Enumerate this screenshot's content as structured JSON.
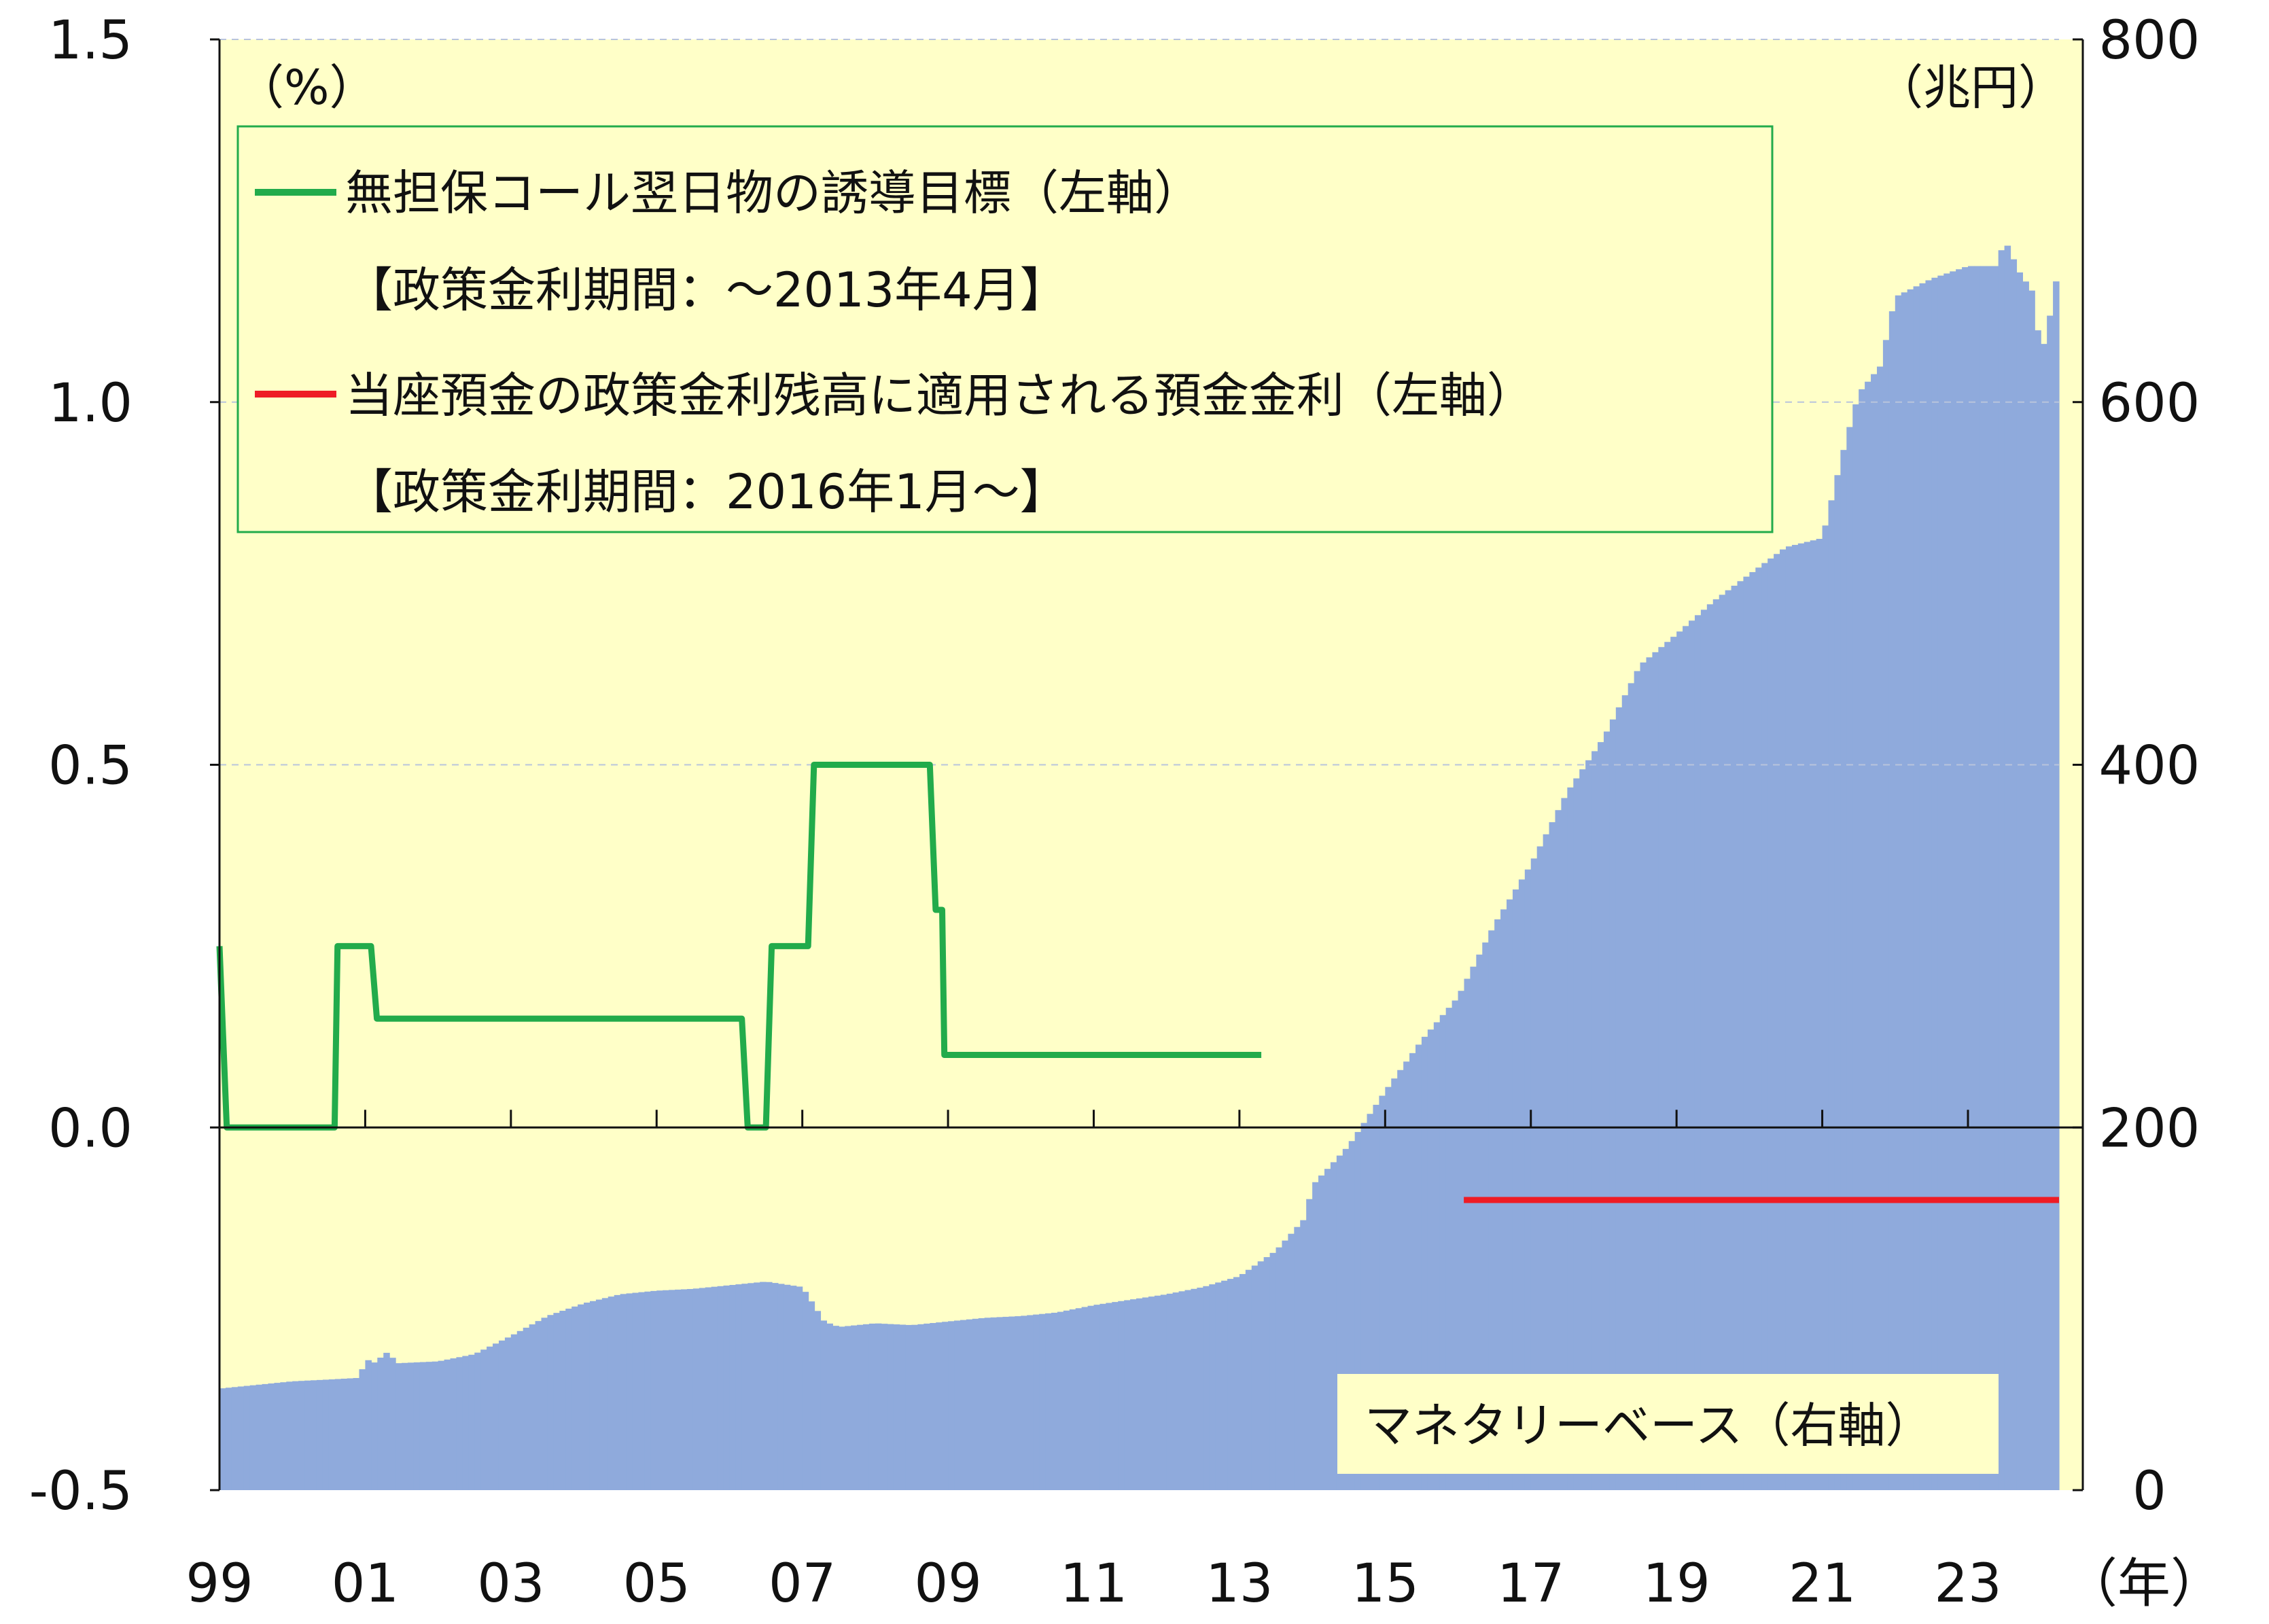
{
  "chart_data": {
    "type": "line",
    "units": {
      "left": "（%）",
      "right": "（兆円）",
      "x": "（年）"
    },
    "left_axis": {
      "range": [
        -0.5,
        1.5
      ],
      "ticks": [
        "-0.5",
        "0.0",
        "0.5",
        "1.0",
        "1.5"
      ]
    },
    "right_axis": {
      "range": [
        0,
        800
      ],
      "ticks": [
        "0",
        "200",
        "400",
        "600",
        "800"
      ]
    },
    "x_axis": {
      "range": [
        1999.0,
        2024.25
      ],
      "tick_labels": [
        "99",
        "01",
        "03",
        "05",
        "07",
        "09",
        "11",
        "13",
        "15",
        "17",
        "19",
        "21",
        "23"
      ]
    },
    "grid": {
      "horizontal_dashed": true
    },
    "legend": {
      "placement": "top-left",
      "items": [
        {
          "name": "無担保コール翌日物の誘導目標（左軸）",
          "note": "【政策金利期間：～2013年4月】",
          "color": "#22ab4b"
        },
        {
          "name": "当座預金の政策金利残高に適用される預金金利（左軸）",
          "note": "【政策金利期間：2016年1月～】",
          "color": "#ee1c25"
        }
      ]
    },
    "area_label": "マネタリーベース（右軸）",
    "series": [
      {
        "name": "無担保コール翌日物の誘導目標（左軸）",
        "axis": "left",
        "color": "#22ab4b",
        "points": [
          [
            1999.0,
            0.25
          ],
          [
            1999.1,
            0.0
          ],
          [
            2000.58,
            0.0
          ],
          [
            2000.62,
            0.25
          ],
          [
            2001.08,
            0.25
          ],
          [
            2001.16,
            0.15
          ],
          [
            2006.17,
            0.15
          ],
          [
            2006.25,
            0.0
          ],
          [
            2006.5,
            0.0
          ],
          [
            2006.58,
            0.25
          ],
          [
            2007.08,
            0.25
          ],
          [
            2007.16,
            0.5
          ],
          [
            2008.75,
            0.5
          ],
          [
            2008.83,
            0.3
          ],
          [
            2008.92,
            0.3
          ],
          [
            2008.95,
            0.1
          ],
          [
            2013.3,
            0.1
          ]
        ]
      },
      {
        "name": "当座預金の政策金利残高に適用される預金金利（左軸）",
        "axis": "left",
        "color": "#ee1c25",
        "points": [
          [
            2016.08,
            -0.1
          ],
          [
            2024.25,
            -0.1
          ]
        ]
      },
      {
        "name": "マネタリーベース（右軸）",
        "axis": "right",
        "type": "area",
        "color": "#8faadc",
        "points": [
          [
            1999.0,
            56
          ],
          [
            1999.5,
            58
          ],
          [
            2000.0,
            60
          ],
          [
            2000.5,
            61
          ],
          [
            2000.95,
            62
          ],
          [
            2001.0,
            90
          ],
          [
            2001.05,
            68
          ],
          [
            2001.3,
            76
          ],
          [
            2001.45,
            70
          ],
          [
            2002.0,
            71
          ],
          [
            2002.5,
            75
          ],
          [
            2003.0,
            85
          ],
          [
            2003.5,
            96
          ],
          [
            2004.0,
            103
          ],
          [
            2004.5,
            108
          ],
          [
            2005.0,
            110
          ],
          [
            2005.5,
            111
          ],
          [
            2006.0,
            113
          ],
          [
            2006.5,
            115
          ],
          [
            2007.0,
            112
          ],
          [
            2007.3,
            93
          ],
          [
            2007.5,
            90
          ],
          [
            2008.0,
            92
          ],
          [
            2008.5,
            91
          ],
          [
            2009.0,
            93
          ],
          [
            2009.5,
            95
          ],
          [
            2010.0,
            96
          ],
          [
            2010.5,
            98
          ],
          [
            2011.0,
            102
          ],
          [
            2011.5,
            105
          ],
          [
            2012.0,
            108
          ],
          [
            2012.5,
            112
          ],
          [
            2013.0,
            118
          ],
          [
            2013.5,
            132
          ],
          [
            2013.9,
            150
          ],
          [
            2014.0,
            168
          ],
          [
            2014.5,
            190
          ],
          [
            2015.0,
            220
          ],
          [
            2015.5,
            248
          ],
          [
            2016.0,
            272
          ],
          [
            2016.5,
            312
          ],
          [
            2017.0,
            345
          ],
          [
            2017.5,
            385
          ],
          [
            2018.0,
            415
          ],
          [
            2018.5,
            455
          ],
          [
            2019.0,
            472
          ],
          [
            2019.5,
            490
          ],
          [
            2020.0,
            505
          ],
          [
            2020.5,
            520
          ],
          [
            2021.0,
            525
          ],
          [
            2021.3,
            575
          ],
          [
            2021.5,
            605
          ],
          [
            2021.8,
            620
          ],
          [
            2022.0,
            658
          ],
          [
            2022.5,
            668
          ],
          [
            2023.0,
            675
          ],
          [
            2023.4,
            675
          ],
          [
            2023.5,
            690
          ],
          [
            2023.7,
            672
          ],
          [
            2023.9,
            660
          ],
          [
            2024.0,
            625
          ],
          [
            2024.1,
            642
          ],
          [
            2024.25,
            676
          ]
        ]
      }
    ]
  }
}
